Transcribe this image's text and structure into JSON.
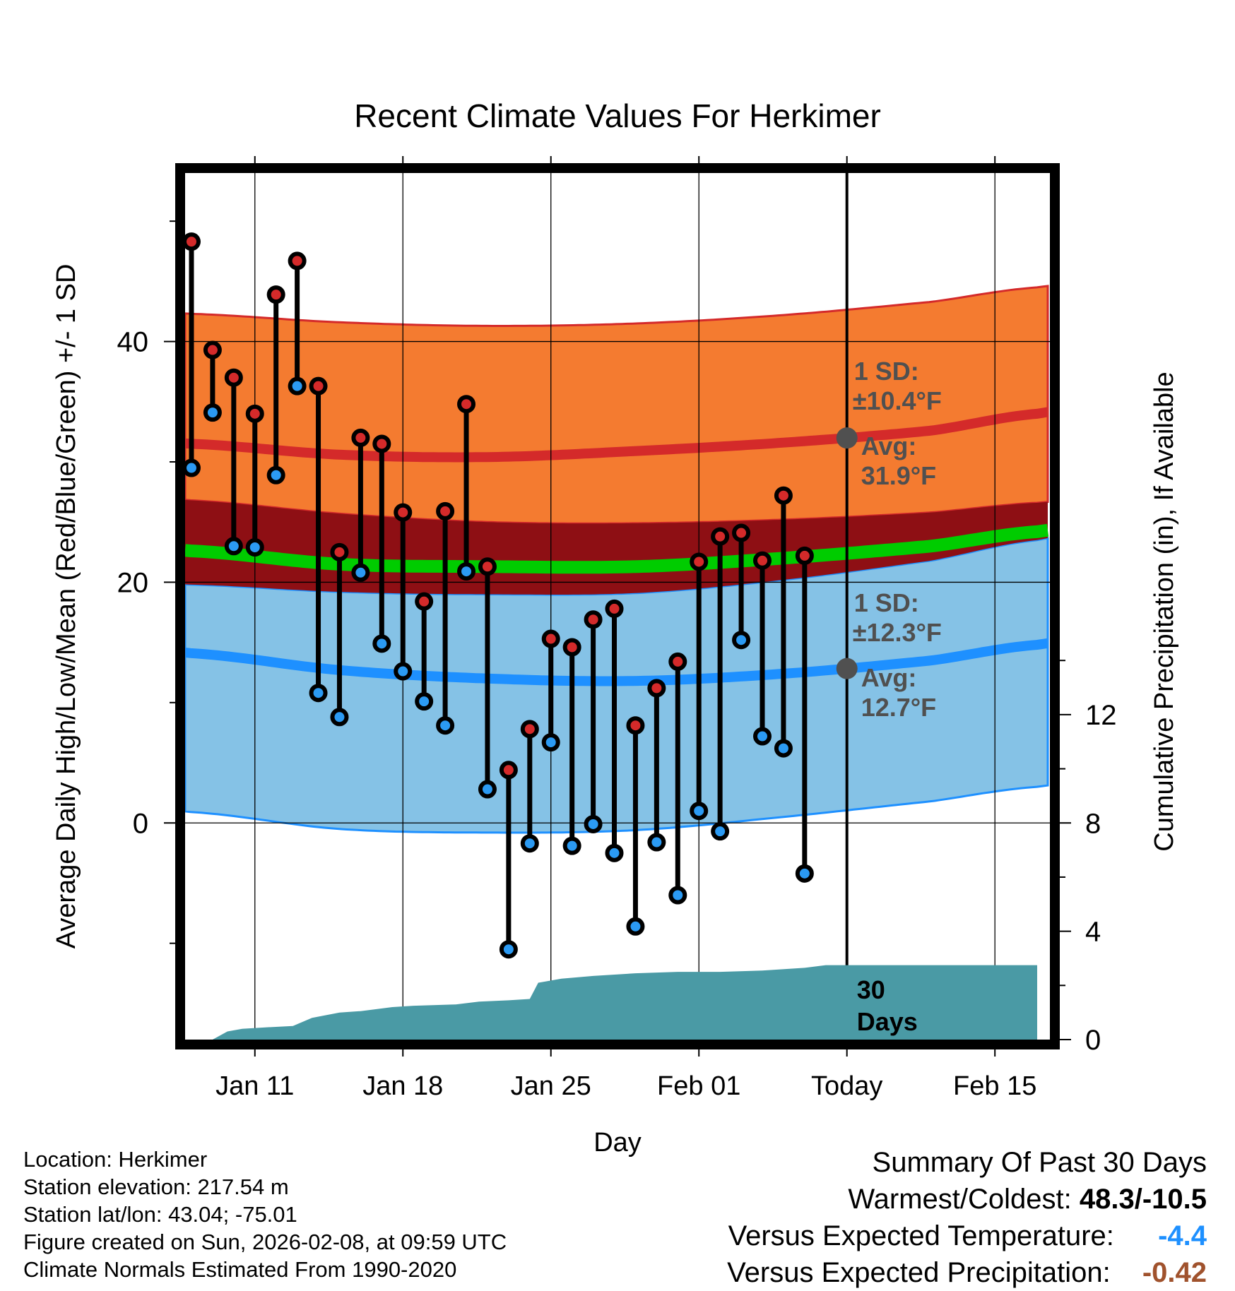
{
  "chart_data": {
    "type": "line",
    "title": "Recent Climate Values For Herkimer",
    "xlabel": "Day",
    "ylabel_left": "Average Daily High/Low/Mean (Red/Blue/Green) +/- 1 SD",
    "ylabel_right": "Cumulative Precipitation (in), If Available",
    "x_tick_labels": [
      "Jan 11",
      "Jan 18",
      "Jan 25",
      "Feb 01",
      "Today",
      "Feb 15"
    ],
    "x_tick_days": [
      11,
      18,
      25,
      32,
      39,
      46
    ],
    "xlim_days": [
      7.7,
      48.6
    ],
    "ylim_left": [
      -18,
      54
    ],
    "y_left_ticks": [
      0,
      20,
      40
    ],
    "ylim_right": [
      0,
      32
    ],
    "y_right_ticks": [
      0,
      4,
      8,
      12
    ],
    "today_day": 39,
    "observed": {
      "days": [
        8,
        9,
        10,
        11,
        12,
        13,
        14,
        15,
        16,
        17,
        18,
        19,
        20,
        21,
        22,
        23,
        24,
        25,
        26,
        27,
        28,
        29,
        30,
        31,
        32,
        33,
        34,
        35,
        36,
        37,
        38
      ],
      "highs": [
        48.3,
        39.3,
        37.0,
        34.0,
        43.9,
        46.7,
        36.3,
        22.5,
        32.0,
        31.5,
        25.8,
        18.4,
        25.9,
        34.8,
        21.3,
        4.4,
        7.8,
        15.3,
        14.6,
        16.9,
        17.8,
        8.1,
        11.2,
        13.4,
        21.7,
        23.8,
        24.1,
        21.8,
        27.2,
        22.2,
        null
      ],
      "lows": [
        29.5,
        34.1,
        23.0,
        22.9,
        28.9,
        36.3,
        10.8,
        8.8,
        20.8,
        14.9,
        12.6,
        10.1,
        8.1,
        20.9,
        2.8,
        -10.5,
        -1.7,
        6.7,
        -1.9,
        -0.1,
        -2.5,
        -8.6,
        -1.6,
        -6.0,
        1.0,
        -0.7,
        15.2,
        7.2,
        6.2,
        -4.2,
        null
      ]
    },
    "normals": {
      "days": [
        8,
        15,
        22,
        29,
        36,
        43,
        48
      ],
      "avg_high": [
        31.5,
        30.6,
        30.4,
        30.9,
        31.6,
        32.6,
        34.0
      ],
      "high_plus_sd": [
        42.3,
        41.6,
        41.3,
        41.5,
        42.2,
        43.3,
        44.5
      ],
      "high_minus_sd": [
        26.8,
        25.7,
        25.0,
        24.9,
        25.2,
        25.8,
        26.6
      ],
      "avg_mean": [
        22.6,
        21.5,
        21.3,
        21.3,
        22.0,
        23.0,
        24.2
      ],
      "avg_low": [
        14.1,
        12.7,
        12.0,
        11.8,
        12.4,
        13.5,
        14.8
      ],
      "low_plus_sd": [
        19.8,
        19.2,
        19.0,
        19.1,
        20.2,
        21.8,
        23.5
      ],
      "low_minus_sd": [
        0.9,
        -0.5,
        -0.8,
        -0.6,
        0.5,
        1.8,
        3.0
      ]
    },
    "precipitation": {
      "days": [
        9,
        9.7,
        10.4,
        11.5,
        12.8,
        13.7,
        15,
        16,
        17.5,
        18.5,
        20.5,
        21.6,
        23,
        24,
        24.4,
        25.5,
        27,
        29,
        31,
        33,
        35,
        37,
        38,
        40,
        48
      ],
      "cumulative": [
        0,
        0.3,
        0.4,
        0.45,
        0.5,
        0.8,
        1.0,
        1.05,
        1.2,
        1.25,
        1.3,
        1.4,
        1.45,
        1.5,
        2.1,
        2.25,
        2.35,
        2.45,
        2.5,
        2.5,
        2.55,
        2.65,
        2.75,
        2.75,
        2.75
      ]
    },
    "annotations": {
      "high_sd": "1 SD:",
      "high_sd_value": "±10.4°F",
      "high_avg": "Avg:",
      "high_avg_value": "31.9°F",
      "low_sd": "1 SD:",
      "low_sd_value": "±12.3°F",
      "low_avg": "Avg:",
      "low_avg_value": "12.7°F",
      "period_num": "30",
      "period_unit": "Days"
    }
  },
  "footer": {
    "location": "Location: Herkimer",
    "elevation": "Station elevation: 217.54 m",
    "latlon": "Station lat/lon: 43.04; -75.01",
    "created": "Figure created on Sun, 2026-02-08, at 09:59 UTC",
    "normals": "Climate Normals Estimated From 1990-2020"
  },
  "summary": {
    "title": "Summary Of Past 30 Days",
    "warm_cold_label": "Warmest/Coldest:",
    "warm_cold_value": "48.3/-10.5",
    "temp_label": "Versus Expected Temperature:",
    "temp_value": "-4.4",
    "precip_label": "Versus Expected Precipitation:",
    "precip_value": "-0.42"
  },
  "colors": {
    "high_band": "#f47b30",
    "high_line": "#d42a2a",
    "overlap_band": "#8e0f14",
    "mean_line": "#00cc00",
    "low_band": "#85c2e6",
    "low_line": "#1e90ff",
    "precip": "#4a9aa5",
    "high_marker": "#d42a2a",
    "low_marker": "#2b9af3",
    "annotation": "#505050"
  }
}
